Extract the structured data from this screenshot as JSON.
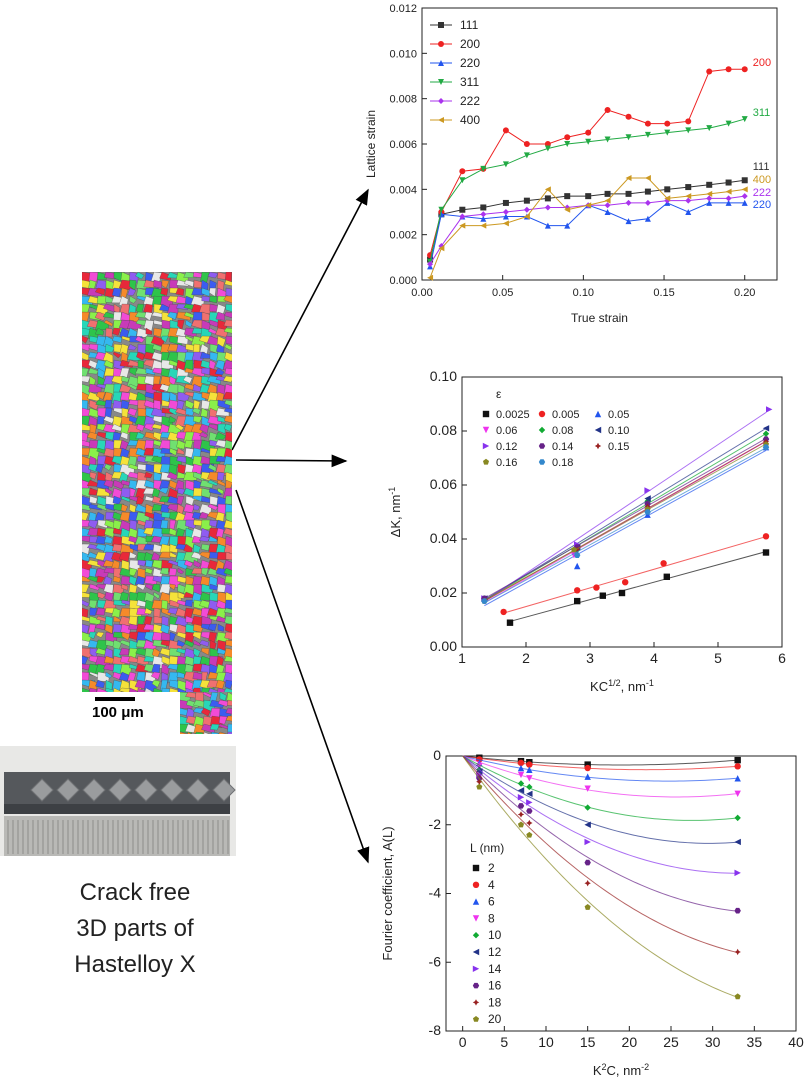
{
  "caption": [
    "Crack free",
    "3D parts of",
    "Hastelloy X"
  ],
  "scale_bar": "100 μm",
  "chart_data": [
    {
      "type": "line",
      "xlabel": "True strain",
      "ylabel": "Lattice strain",
      "xlim": [
        0,
        0.22
      ],
      "ylim": [
        0,
        0.012
      ],
      "xticks": [
        0.0,
        0.05,
        0.1,
        0.15,
        0.2
      ],
      "xtick_labels": [
        "0.00",
        "0.05",
        "0.10",
        "0.15",
        "0.20"
      ],
      "yticks": [
        0,
        0.002,
        0.004,
        0.006,
        0.008,
        0.01,
        0.012
      ],
      "ytick_labels": [
        "0.000",
        "0.002",
        "0.004",
        "0.006",
        "0.008",
        "0.010",
        "0.012"
      ],
      "legend": "top-left",
      "x": [
        0.005,
        0.012,
        0.025,
        0.038,
        0.052,
        0.065,
        0.078,
        0.09,
        0.103,
        0.115,
        0.128,
        0.14,
        0.152,
        0.165,
        0.178,
        0.19,
        0.2
      ],
      "series": [
        {
          "name": "111",
          "color": "#333333",
          "marker": "square",
          "end_label": "111",
          "values": [
            0.0009,
            0.0029,
            0.0031,
            0.0032,
            0.0034,
            0.0035,
            0.0036,
            0.0037,
            0.0037,
            0.0038,
            0.0038,
            0.0039,
            0.004,
            0.0041,
            0.0042,
            0.0043,
            0.0044
          ]
        },
        {
          "name": "200",
          "color": "#ee2222",
          "marker": "circle",
          "end_label": "200",
          "values": [
            0.0011,
            0.003,
            0.0048,
            0.0049,
            0.0066,
            0.006,
            0.006,
            0.0063,
            0.0065,
            0.0075,
            0.0072,
            0.0069,
            0.0069,
            0.007,
            0.0092,
            0.0093,
            0.0093
          ]
        },
        {
          "name": "220",
          "color": "#2255ee",
          "marker": "triangle-up",
          "end_label": "220",
          "values": [
            0.0006,
            0.0029,
            0.0028,
            0.0027,
            0.0028,
            0.0028,
            0.0024,
            0.0024,
            0.0033,
            0.003,
            0.0026,
            0.0027,
            0.0034,
            0.003,
            0.0034,
            0.0034,
            0.0034
          ]
        },
        {
          "name": "311",
          "color": "#22aa44",
          "marker": "triangle-down",
          "end_label": "311",
          "values": [
            0.0008,
            0.0031,
            0.0044,
            0.0049,
            0.0051,
            0.0055,
            0.0058,
            0.006,
            0.0061,
            0.0062,
            0.0063,
            0.0064,
            0.0065,
            0.0066,
            0.0067,
            0.0069,
            0.0071
          ]
        },
        {
          "name": "222",
          "color": "#aa33ee",
          "marker": "diamond",
          "end_label": "222",
          "values": [
            0.0007,
            0.0015,
            0.0028,
            0.0029,
            0.003,
            0.0031,
            0.0032,
            0.0032,
            0.0033,
            0.0033,
            0.0034,
            0.0034,
            0.0035,
            0.0035,
            0.0036,
            0.0036,
            0.0037
          ]
        },
        {
          "name": "400",
          "color": "#cc9922",
          "marker": "triangle-left",
          "end_label": "400",
          "values": [
            0.0001,
            0.0014,
            0.0024,
            0.0024,
            0.0025,
            0.0028,
            0.004,
            0.0031,
            0.0033,
            0.0035,
            0.0045,
            0.0045,
            0.0036,
            0.0037,
            0.0038,
            0.0039,
            0.004
          ]
        }
      ]
    },
    {
      "type": "scatter",
      "xlabel": "KC^1/2, nm^-1",
      "ylabel": "ΔK, nm^-1",
      "xlim": [
        1,
        6
      ],
      "ylim": [
        0,
        0.1
      ],
      "xticks": [
        1,
        2,
        3,
        4,
        5,
        6
      ],
      "xtick_labels": [
        "1",
        "2",
        "3",
        "4",
        "5",
        "6"
      ],
      "yticks": [
        0,
        0.02,
        0.04,
        0.06,
        0.08,
        0.1
      ],
      "ytick_labels": [
        "0.00",
        "0.02",
        "0.04",
        "0.06",
        "0.08",
        "0.10"
      ],
      "legend_title": "ε",
      "legend": "top-left",
      "fit_lines": true,
      "series": [
        {
          "name": "0.0025",
          "color": "#111111",
          "marker": "square",
          "x": [
            1.75,
            2.8,
            3.2,
            3.5,
            4.2,
            5.75
          ],
          "values": [
            0.009,
            0.017,
            0.019,
            0.02,
            0.026,
            0.035
          ]
        },
        {
          "name": "0.005",
          "color": "#ee2222",
          "marker": "circle",
          "x": [
            1.65,
            2.8,
            3.1,
            3.55,
            4.15,
            5.75
          ],
          "values": [
            0.013,
            0.021,
            0.022,
            0.024,
            0.031,
            0.041
          ]
        },
        {
          "name": "0.05",
          "color": "#2255ee",
          "marker": "triangle-up",
          "x": [
            1.35,
            2.8,
            3.9,
            5.75
          ],
          "values": [
            0.018,
            0.03,
            0.049,
            0.074
          ]
        },
        {
          "name": "0.06",
          "color": "#ee33ee",
          "marker": "triangle-down",
          "x": [
            1.35,
            2.75,
            3.9,
            5.75
          ],
          "values": [
            0.017,
            0.034,
            0.052,
            0.076
          ]
        },
        {
          "name": "0.08",
          "color": "#11aa33",
          "marker": "diamond",
          "x": [
            1.35,
            2.8,
            3.9,
            5.75
          ],
          "values": [
            0.018,
            0.036,
            0.054,
            0.079
          ]
        },
        {
          "name": "0.10",
          "color": "#223388",
          "marker": "triangle-left",
          "x": [
            1.35,
            2.8,
            3.9,
            5.75
          ],
          "values": [
            0.018,
            0.037,
            0.055,
            0.081
          ]
        },
        {
          "name": "0.12",
          "color": "#8833ee",
          "marker": "triangle-right",
          "x": [
            1.35,
            2.8,
            3.9,
            5.8
          ],
          "values": [
            0.018,
            0.038,
            0.058,
            0.088
          ]
        },
        {
          "name": "0.14",
          "color": "#662288",
          "marker": "hexagon",
          "x": [
            1.35,
            2.8,
            3.9,
            5.75
          ],
          "values": [
            0.018,
            0.037,
            0.053,
            0.077
          ]
        },
        {
          "name": "0.15",
          "color": "#992222",
          "marker": "star",
          "x": [
            1.35,
            2.8,
            3.9,
            5.75
          ],
          "values": [
            0.017,
            0.036,
            0.052,
            0.076
          ]
        },
        {
          "name": "0.16",
          "color": "#888822",
          "marker": "pentagon",
          "x": [
            1.35,
            2.75,
            3.9,
            5.75
          ],
          "values": [
            0.017,
            0.036,
            0.051,
            0.075
          ]
        },
        {
          "name": "0.18",
          "color": "#3388cc",
          "marker": "hexagon",
          "x": [
            1.35,
            2.8,
            3.9,
            5.75
          ],
          "values": [
            0.017,
            0.034,
            0.05,
            0.074
          ]
        }
      ]
    },
    {
      "type": "scatter",
      "xlabel": "K^2C, nm^-2",
      "ylabel": "Fourier coefficient, A(L)",
      "xlim": [
        -2,
        40
      ],
      "ylim": [
        -8,
        0
      ],
      "xticks": [
        0,
        5,
        10,
        15,
        20,
        25,
        30,
        35,
        40
      ],
      "xtick_labels": [
        "0",
        "5",
        "10",
        "15",
        "20",
        "25",
        "30",
        "35",
        "40"
      ],
      "yticks": [
        -8,
        -6,
        -4,
        -2,
        0
      ],
      "ytick_labels": [
        "-8",
        "-6",
        "-4",
        "-2",
        "0"
      ],
      "legend_title": "L (nm)",
      "legend": "left",
      "fit_curves": true,
      "x": [
        2,
        7,
        8,
        15,
        33
      ],
      "series": [
        {
          "name": "2",
          "color": "#111111",
          "marker": "square",
          "values": [
            -0.05,
            -0.15,
            -0.18,
            -0.25,
            -0.12
          ]
        },
        {
          "name": "4",
          "color": "#ee2222",
          "marker": "circle",
          "values": [
            -0.1,
            -0.2,
            -0.25,
            -0.35,
            -0.3
          ]
        },
        {
          "name": "6",
          "color": "#2255ee",
          "marker": "triangle-up",
          "values": [
            -0.2,
            -0.35,
            -0.4,
            -0.6,
            -0.65
          ]
        },
        {
          "name": "8",
          "color": "#ee33ee",
          "marker": "triangle-down",
          "values": [
            -0.3,
            -0.55,
            -0.65,
            -0.95,
            -1.1
          ]
        },
        {
          "name": "10",
          "color": "#11aa33",
          "marker": "diamond",
          "values": [
            -0.4,
            -0.8,
            -0.9,
            -1.5,
            -1.8
          ]
        },
        {
          "name": "12",
          "color": "#223388",
          "marker": "triangle-left",
          "values": [
            -0.45,
            -1.0,
            -1.1,
            -2.0,
            -2.5
          ]
        },
        {
          "name": "14",
          "color": "#8833ee",
          "marker": "triangle-right",
          "values": [
            -0.55,
            -1.2,
            -1.35,
            -2.5,
            -3.4
          ]
        },
        {
          "name": "16",
          "color": "#662288",
          "marker": "hexagon",
          "values": [
            -0.65,
            -1.45,
            -1.6,
            -3.1,
            -4.5
          ]
        },
        {
          "name": "18",
          "color": "#992222",
          "marker": "star",
          "values": [
            -0.75,
            -1.7,
            -1.95,
            -3.7,
            -5.7
          ]
        },
        {
          "name": "20",
          "color": "#888822",
          "marker": "pentagon",
          "values": [
            -0.9,
            -2.0,
            -2.3,
            -4.4,
            -7.0
          ]
        }
      ]
    }
  ]
}
